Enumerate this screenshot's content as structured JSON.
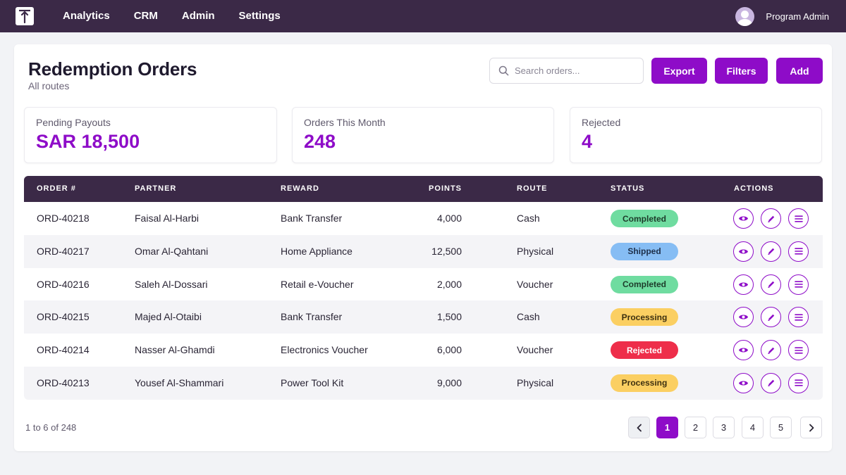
{
  "nav": {
    "items": [
      "Analytics",
      "CRM",
      "Admin",
      "Settings"
    ],
    "user_name": "Program Admin"
  },
  "header": {
    "title": "Redemption Orders",
    "subtitle": "All routes",
    "search_placeholder": "Search orders...",
    "export_label": "Export",
    "filters_label": "Filters",
    "add_label": "Add"
  },
  "stats": [
    {
      "label": "Pending Payouts",
      "value": "SAR 18,500"
    },
    {
      "label": "Orders This Month",
      "value": "248"
    },
    {
      "label": "Rejected",
      "value": "4"
    }
  ],
  "table": {
    "columns": [
      "ORDER #",
      "PARTNER",
      "REWARD",
      "POINTS",
      "ROUTE",
      "STATUS",
      "ACTIONS"
    ],
    "rows": [
      {
        "order": "ORD-40218",
        "partner": "Faisal Al-Harbi",
        "reward": "Bank Transfer",
        "points": "4,000",
        "route": "Cash",
        "status": "Completed"
      },
      {
        "order": "ORD-40217",
        "partner": "Omar Al-Qahtani",
        "reward": "Home Appliance",
        "points": "12,500",
        "route": "Physical",
        "status": "Shipped"
      },
      {
        "order": "ORD-40216",
        "partner": "Saleh Al-Dossari",
        "reward": "Retail e-Voucher",
        "points": "2,000",
        "route": "Voucher",
        "status": "Completed"
      },
      {
        "order": "ORD-40215",
        "partner": "Majed Al-Otaibi",
        "reward": "Bank Transfer",
        "points": "1,500",
        "route": "Cash",
        "status": "Processing"
      },
      {
        "order": "ORD-40214",
        "partner": "Nasser Al-Ghamdi",
        "reward": "Electronics Voucher",
        "points": "6,000",
        "route": "Voucher",
        "status": "Rejected"
      },
      {
        "order": "ORD-40213",
        "partner": "Yousef Al-Shammari",
        "reward": "Power Tool Kit",
        "points": "9,000",
        "route": "Physical",
        "status": "Processing"
      }
    ]
  },
  "status_colors": {
    "Completed": {
      "bg": "#6fdca0",
      "fg": "#1d3b2a"
    },
    "Shipped": {
      "bg": "#86bdf4",
      "fg": "#1d2f4a"
    },
    "Processing": {
      "bg": "#fbcf62",
      "fg": "#3d3010"
    },
    "Rejected": {
      "bg": "#ee2e4a",
      "fg": "#ffffff"
    }
  },
  "icons": {
    "row_actions": [
      "eye-icon",
      "pencil-icon",
      "list-icon"
    ],
    "pager_prev": "chevron-left-icon",
    "pager_next": "chevron-right-icon"
  },
  "colors": {
    "accent": "#8e0cc8",
    "nav_bg": "#3b2947"
  },
  "pagination": {
    "summary": "1 to 6 of 248",
    "pages": [
      "1",
      "2",
      "3",
      "4",
      "5"
    ],
    "current": "1"
  }
}
